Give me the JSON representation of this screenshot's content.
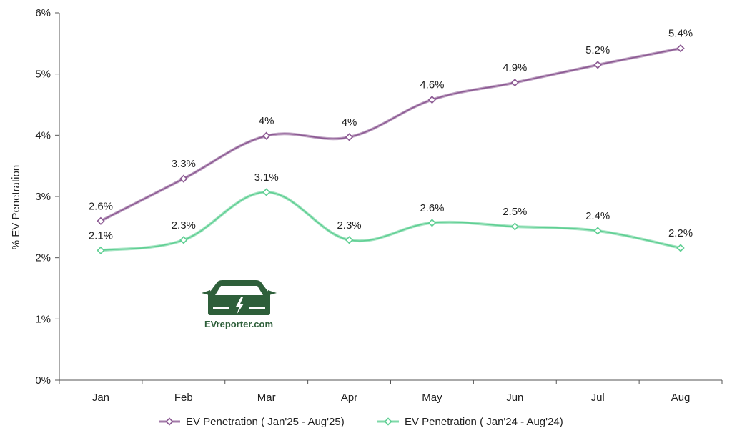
{
  "chart_data": {
    "type": "line",
    "title": "",
    "xlabel": "",
    "ylabel": "% EV Penetration",
    "ylim": [
      0,
      6
    ],
    "yticks": [
      "0%",
      "1%",
      "2%",
      "3%",
      "4%",
      "5%",
      "6%"
    ],
    "categories": [
      "Jan",
      "Feb",
      "Mar",
      "Apr",
      "May",
      "Jun",
      "Jul",
      "Aug"
    ],
    "series": [
      {
        "name": "EV Penetration ( Jan'25 - Aug'25)",
        "color": "#8c5a93",
        "values": [
          2.6,
          3.29,
          3.99,
          3.97,
          4.58,
          4.86,
          5.15,
          5.42
        ],
        "labels": [
          "2.6%",
          "3.3%",
          "4%",
          "4%",
          "4.6%",
          "4.9%",
          "5.2%",
          "5.4%"
        ]
      },
      {
        "name": "EV Penetration ( Jan'24 - Aug'24)",
        "color": "#5fcf93",
        "values": [
          2.12,
          2.29,
          3.07,
          2.29,
          2.57,
          2.51,
          2.44,
          2.16
        ],
        "labels": [
          "2.1%",
          "2.3%",
          "3.1%",
          "2.3%",
          "2.6%",
          "2.5%",
          "2.4%",
          "2.2%"
        ]
      }
    ],
    "legend": "bottom",
    "grid": false
  },
  "watermark": {
    "text": "EVreporter.com",
    "color": "#2e5f3a"
  }
}
